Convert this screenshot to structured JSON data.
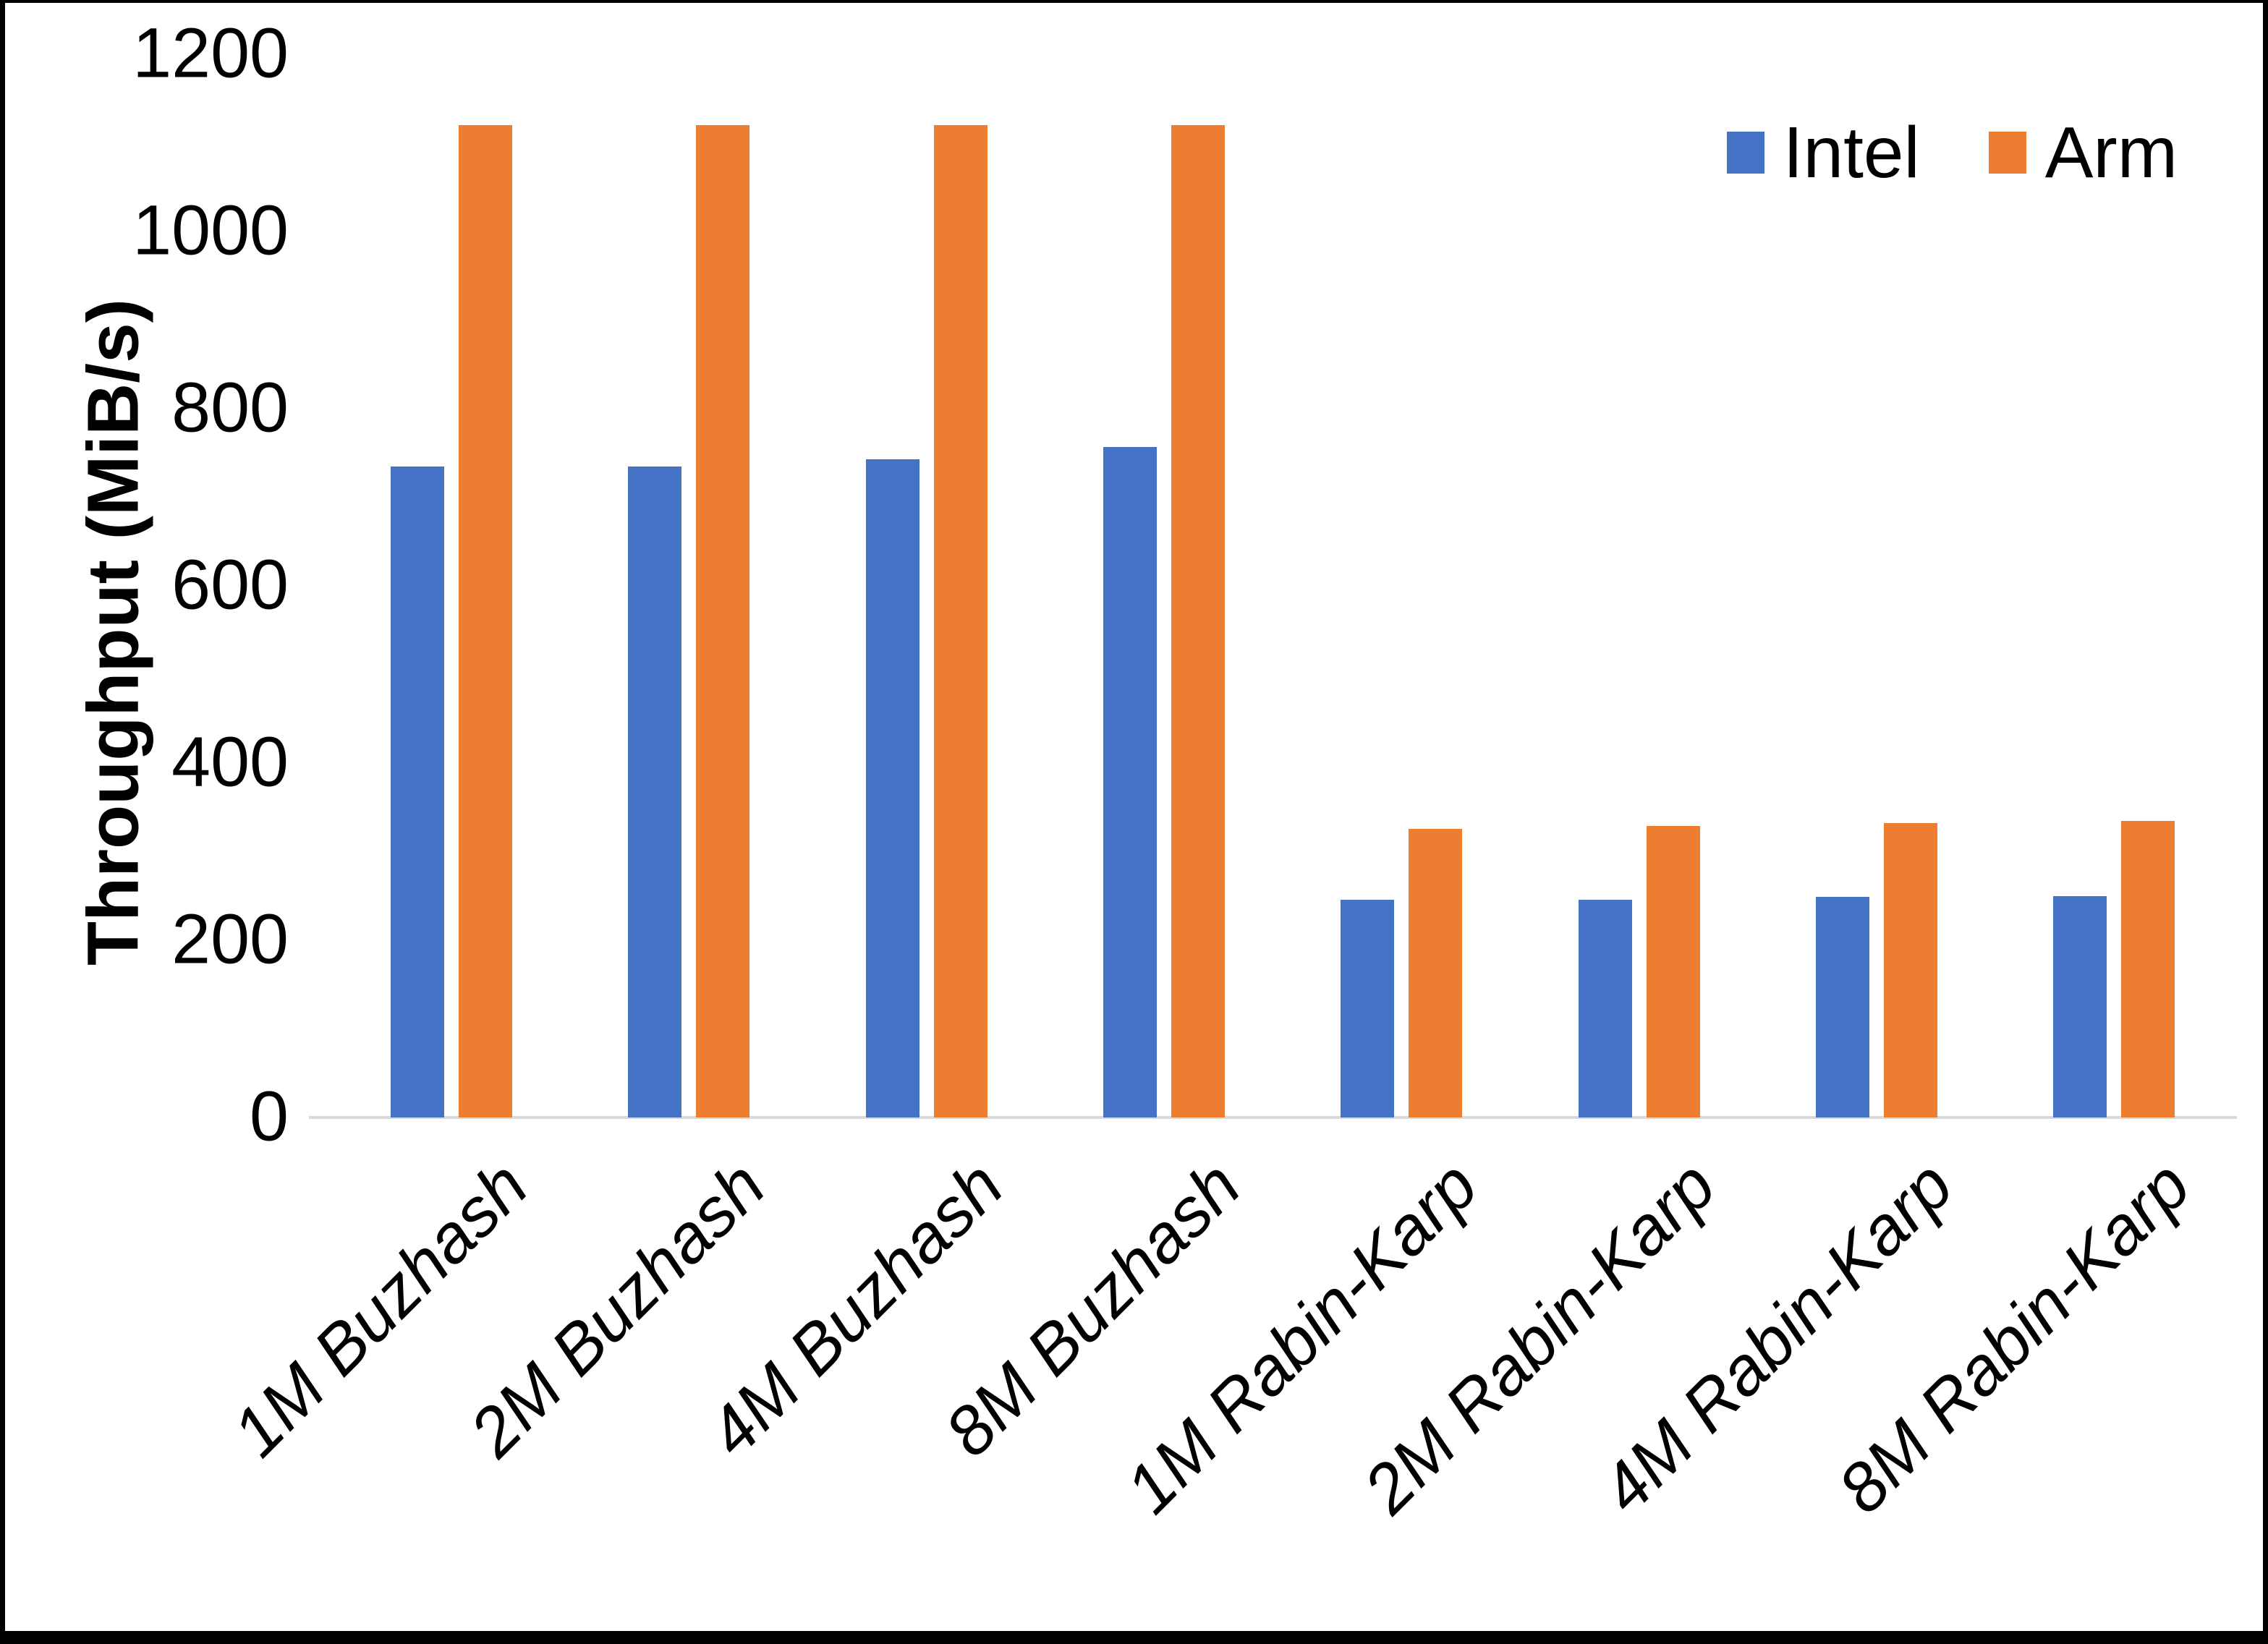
{
  "chart_data": {
    "type": "bar",
    "title": "",
    "ylabel": "Throughput (MiB/s)",
    "xlabel": "",
    "ylim": [
      0,
      1200
    ],
    "y_ticks": [
      0,
      200,
      400,
      600,
      800,
      1000,
      1200
    ],
    "grid": false,
    "legend_position": "top-right",
    "axis_line_color": "#D9D9D9",
    "text_color": "#000000",
    "categories": [
      "1M Buzhash",
      "2M Buzhash",
      "4M Buzhash",
      "8M Buzhash",
      "1M Rabin-Karp",
      "2M Rabin-Karp",
      "4M Rabin-Karp",
      "8M Rabin-Karp"
    ],
    "series": [
      {
        "name": "Intel",
        "color": "#4472C4",
        "values": [
          735,
          735,
          743,
          757,
          246,
          246,
          249,
          250
        ]
      },
      {
        "name": "Arm",
        "color": "#ED7D31",
        "values": [
          1120,
          1120,
          1120,
          1120,
          326,
          329,
          332,
          335
        ]
      }
    ]
  }
}
